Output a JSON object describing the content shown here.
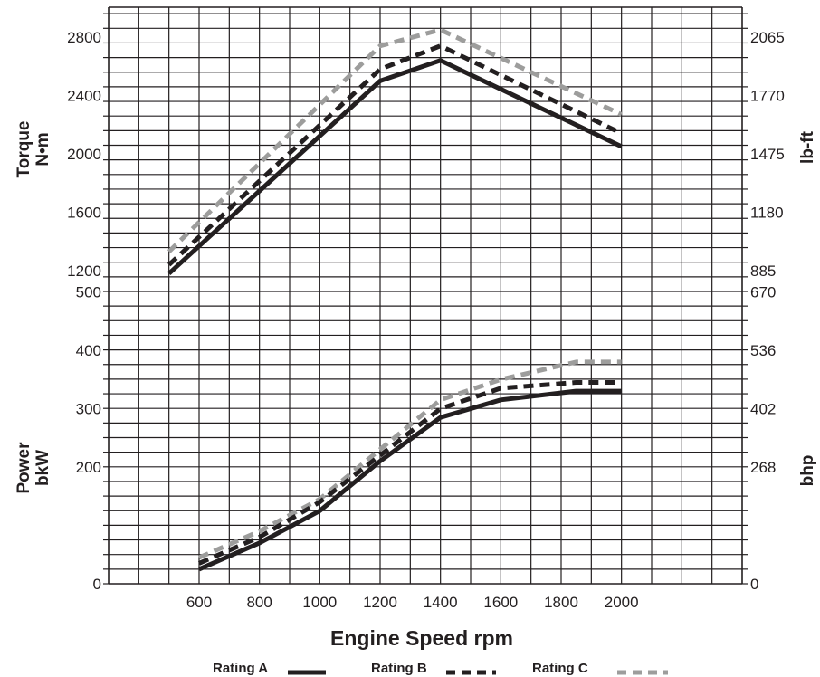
{
  "chart_data": {
    "type": "line",
    "xlabel": "Engine Speed rpm",
    "x_ticks": [
      "600",
      "800",
      "1000",
      "1200",
      "1400",
      "1600",
      "1800",
      "2000"
    ],
    "x_tick_values": [
      600,
      800,
      1000,
      1200,
      1400,
      1600,
      1800,
      2000
    ],
    "xlim": [
      300,
      2400
    ],
    "grid": true,
    "legend_placement": "bottom",
    "panels": [
      {
        "name": "torque",
        "ylabel_left": [
          "Torque",
          "N•m"
        ],
        "ylabel_right": "lb-ft",
        "ylim": [
          1200,
          2800
        ],
        "left_ticks": [
          "1200",
          "1600",
          "2000",
          "2400",
          "2800"
        ],
        "left_tick_values": [
          1200,
          1600,
          2000,
          2400,
          2800
        ],
        "right_ticks": [
          "885",
          "1180",
          "1475",
          "1770",
          "2065"
        ],
        "series": [
          {
            "name": "Rating A",
            "style": "solid",
            "color": "#231f20",
            "x": [
              500,
              1200,
              1400,
              2000
            ],
            "y": [
              1180,
              2500,
              2640,
              2050
            ]
          },
          {
            "name": "Rating B",
            "style": "dashed",
            "color": "#231f20",
            "x": [
              500,
              1200,
              1400,
              2000
            ],
            "y": [
              1240,
              2580,
              2740,
              2140
            ]
          },
          {
            "name": "Rating C",
            "style": "dashed",
            "color": "#9d9d9c",
            "x": [
              500,
              1200,
              1400,
              2000
            ],
            "y": [
              1330,
              2740,
              2850,
              2270
            ]
          }
        ]
      },
      {
        "name": "power",
        "ylabel_left": [
          "Power",
          "bkW"
        ],
        "ylabel_right": "bhp",
        "ylim": [
          0,
          500
        ],
        "left_ticks": [
          "0",
          "200",
          "300",
          "400",
          "500"
        ],
        "left_tick_values": [
          0,
          200,
          300,
          400,
          500
        ],
        "right_ticks": [
          "0",
          "268",
          "402",
          "536",
          "670"
        ],
        "series": [
          {
            "name": "Rating A",
            "style": "solid",
            "color": "#231f20",
            "x": [
              600,
              800,
              1000,
              1200,
              1400,
              1600,
              1850,
              2000
            ],
            "y": [
              25,
              70,
              125,
              210,
              285,
              315,
              330,
              330
            ]
          },
          {
            "name": "Rating B",
            "style": "dashed",
            "color": "#231f20",
            "x": [
              600,
              800,
              1000,
              1200,
              1400,
              1600,
              1850,
              2000
            ],
            "y": [
              35,
              80,
              140,
              220,
              300,
              335,
              345,
              345
            ]
          },
          {
            "name": "Rating C",
            "style": "dashed",
            "color": "#9d9d9c",
            "x": [
              600,
              800,
              1000,
              1200,
              1400,
              1600,
              1850,
              2000
            ],
            "y": [
              45,
              90,
              145,
              230,
              315,
              350,
              380,
              380
            ]
          }
        ]
      }
    ],
    "legend": [
      {
        "label": "Rating A",
        "style": "solid",
        "color": "#231f20"
      },
      {
        "label": "Rating B",
        "style": "dashed",
        "color": "#231f20"
      },
      {
        "label": "Rating C",
        "style": "dashed",
        "color": "#9d9d9c"
      }
    ]
  }
}
